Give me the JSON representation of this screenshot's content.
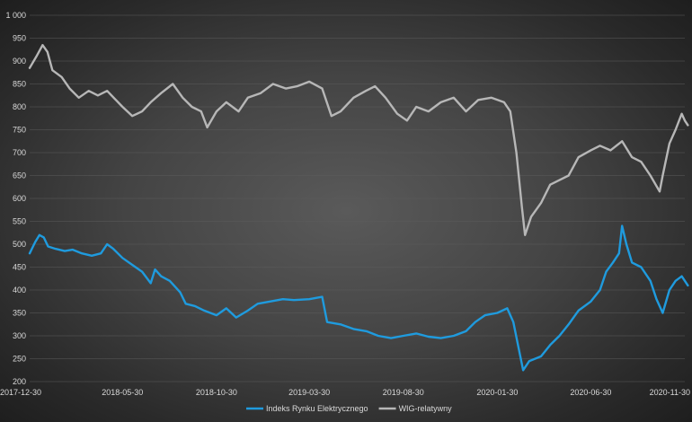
{
  "chart_data": {
    "type": "line",
    "title": "",
    "xlabel": "",
    "ylabel": "",
    "ylim": [
      200,
      1000
    ],
    "yticks": [
      200,
      250,
      300,
      350,
      400,
      450,
      500,
      550,
      600,
      650,
      700,
      750,
      800,
      850,
      900,
      950,
      1000
    ],
    "ytick_labels": [
      "200",
      "250",
      "300",
      "350",
      "400",
      "450",
      "500",
      "550",
      "600",
      "650",
      "700",
      "750",
      "800",
      "850",
      "900",
      "950",
      "1 000"
    ],
    "x_range": [
      "2017-12-30",
      "2020-11-30"
    ],
    "xtick_labels": [
      "2017-12-30",
      "2018-05-30",
      "2018-10-30",
      "2019-03-30",
      "2019-08-30",
      "2020-01-30",
      "2020-06-30",
      "2020-11-30"
    ],
    "grid": true,
    "legend_position": "bottom",
    "colors": {
      "Indeks Rynku Elektrycznego": "#1f9bde",
      "WIG-relatywny": "#b7b7b7"
    },
    "series": [
      {
        "name": "Indeks Rynku Elektrycznego",
        "points": [
          [
            "2017-12-30",
            480
          ],
          [
            "2018-01-08",
            505
          ],
          [
            "2018-01-15",
            520
          ],
          [
            "2018-01-22",
            515
          ],
          [
            "2018-01-29",
            495
          ],
          [
            "2018-02-10",
            490
          ],
          [
            "2018-02-25",
            485
          ],
          [
            "2018-03-10",
            488
          ],
          [
            "2018-03-25",
            480
          ],
          [
            "2018-04-10",
            475
          ],
          [
            "2018-04-25",
            480
          ],
          [
            "2018-05-05",
            500
          ],
          [
            "2018-05-15",
            490
          ],
          [
            "2018-05-30",
            470
          ],
          [
            "2018-06-15",
            455
          ],
          [
            "2018-07-01",
            440
          ],
          [
            "2018-07-15",
            415
          ],
          [
            "2018-07-22",
            445
          ],
          [
            "2018-08-01",
            430
          ],
          [
            "2018-08-15",
            420
          ],
          [
            "2018-09-01",
            395
          ],
          [
            "2018-09-10",
            370
          ],
          [
            "2018-09-25",
            365
          ],
          [
            "2018-10-10",
            355
          ],
          [
            "2018-10-30",
            345
          ],
          [
            "2018-11-15",
            360
          ],
          [
            "2018-12-01",
            340
          ],
          [
            "2018-12-20",
            355
          ],
          [
            "2019-01-05",
            370
          ],
          [
            "2019-01-25",
            375
          ],
          [
            "2019-02-15",
            380
          ],
          [
            "2019-03-05",
            378
          ],
          [
            "2019-03-30",
            380
          ],
          [
            "2019-04-20",
            385
          ],
          [
            "2019-04-28",
            330
          ],
          [
            "2019-05-20",
            325
          ],
          [
            "2019-06-10",
            315
          ],
          [
            "2019-07-01",
            310
          ],
          [
            "2019-07-20",
            300
          ],
          [
            "2019-08-10",
            295
          ],
          [
            "2019-08-30",
            300
          ],
          [
            "2019-09-20",
            305
          ],
          [
            "2019-10-10",
            298
          ],
          [
            "2019-10-30",
            295
          ],
          [
            "2019-11-20",
            300
          ],
          [
            "2019-12-10",
            310
          ],
          [
            "2019-12-25",
            330
          ],
          [
            "2020-01-10",
            345
          ],
          [
            "2020-01-30",
            350
          ],
          [
            "2020-02-15",
            360
          ],
          [
            "2020-02-25",
            330
          ],
          [
            "2020-03-05",
            270
          ],
          [
            "2020-03-12",
            225
          ],
          [
            "2020-03-22",
            245
          ],
          [
            "2020-04-10",
            255
          ],
          [
            "2020-04-25",
            280
          ],
          [
            "2020-05-10",
            300
          ],
          [
            "2020-05-25",
            325
          ],
          [
            "2020-06-10",
            355
          ],
          [
            "2020-06-30",
            375
          ],
          [
            "2020-07-15",
            400
          ],
          [
            "2020-07-25",
            440
          ],
          [
            "2020-08-05",
            460
          ],
          [
            "2020-08-15",
            480
          ],
          [
            "2020-08-20",
            540
          ],
          [
            "2020-08-27",
            500
          ],
          [
            "2020-09-05",
            460
          ],
          [
            "2020-09-20",
            450
          ],
          [
            "2020-10-05",
            420
          ],
          [
            "2020-10-15",
            380
          ],
          [
            "2020-10-25",
            350
          ],
          [
            "2020-11-05",
            400
          ],
          [
            "2020-11-15",
            420
          ],
          [
            "2020-11-25",
            430
          ],
          [
            "2020-11-30",
            420
          ],
          [
            "2020-12-05",
            410
          ]
        ]
      },
      {
        "name": "WIG-relatywny",
        "points": [
          [
            "2017-12-30",
            885
          ],
          [
            "2018-01-10",
            910
          ],
          [
            "2018-01-20",
            935
          ],
          [
            "2018-01-28",
            920
          ],
          [
            "2018-02-05",
            880
          ],
          [
            "2018-02-20",
            865
          ],
          [
            "2018-03-05",
            840
          ],
          [
            "2018-03-20",
            820
          ],
          [
            "2018-04-05",
            835
          ],
          [
            "2018-04-20",
            825
          ],
          [
            "2018-05-05",
            835
          ],
          [
            "2018-05-30",
            800
          ],
          [
            "2018-06-15",
            780
          ],
          [
            "2018-07-01",
            790
          ],
          [
            "2018-07-15",
            810
          ],
          [
            "2018-08-01",
            830
          ],
          [
            "2018-08-20",
            850
          ],
          [
            "2018-09-05",
            820
          ],
          [
            "2018-09-20",
            800
          ],
          [
            "2018-10-05",
            790
          ],
          [
            "2018-10-15",
            755
          ],
          [
            "2018-10-30",
            790
          ],
          [
            "2018-11-15",
            810
          ],
          [
            "2018-12-05",
            790
          ],
          [
            "2018-12-20",
            820
          ],
          [
            "2019-01-10",
            830
          ],
          [
            "2019-01-30",
            850
          ],
          [
            "2019-02-20",
            840
          ],
          [
            "2019-03-10",
            845
          ],
          [
            "2019-03-30",
            855
          ],
          [
            "2019-04-20",
            840
          ],
          [
            "2019-05-05",
            780
          ],
          [
            "2019-05-20",
            790
          ],
          [
            "2019-06-10",
            820
          ],
          [
            "2019-06-30",
            835
          ],
          [
            "2019-07-15",
            845
          ],
          [
            "2019-08-01",
            820
          ],
          [
            "2019-08-20",
            785
          ],
          [
            "2019-09-05",
            770
          ],
          [
            "2019-09-20",
            800
          ],
          [
            "2019-10-10",
            790
          ],
          [
            "2019-10-30",
            810
          ],
          [
            "2019-11-20",
            820
          ],
          [
            "2019-12-10",
            790
          ],
          [
            "2019-12-30",
            815
          ],
          [
            "2020-01-20",
            820
          ],
          [
            "2020-02-10",
            810
          ],
          [
            "2020-02-20",
            790
          ],
          [
            "2020-03-01",
            700
          ],
          [
            "2020-03-10",
            580
          ],
          [
            "2020-03-15",
            520
          ],
          [
            "2020-03-25",
            560
          ],
          [
            "2020-04-10",
            590
          ],
          [
            "2020-04-25",
            630
          ],
          [
            "2020-05-10",
            640
          ],
          [
            "2020-05-25",
            650
          ],
          [
            "2020-06-10",
            690
          ],
          [
            "2020-06-30",
            705
          ],
          [
            "2020-07-15",
            715
          ],
          [
            "2020-08-01",
            705
          ],
          [
            "2020-08-20",
            725
          ],
          [
            "2020-09-05",
            690
          ],
          [
            "2020-09-20",
            680
          ],
          [
            "2020-10-05",
            650
          ],
          [
            "2020-10-20",
            615
          ],
          [
            "2020-10-25",
            650
          ],
          [
            "2020-11-05",
            720
          ],
          [
            "2020-11-15",
            750
          ],
          [
            "2020-11-25",
            785
          ],
          [
            "2020-11-30",
            770
          ],
          [
            "2020-12-05",
            760
          ]
        ]
      }
    ]
  }
}
